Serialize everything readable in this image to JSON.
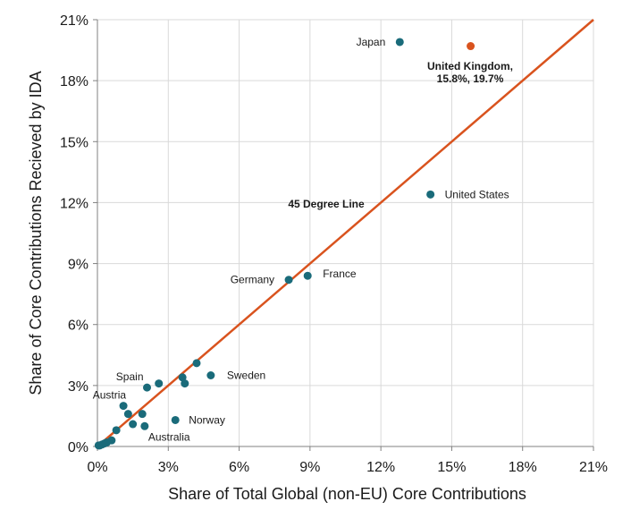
{
  "chart_data": {
    "type": "scatter",
    "title": "",
    "xlabel": "Share of Total Global (non-EU) Core Contributions",
    "ylabel": "Share of Core Contributions Recieved by IDA",
    "xlim": [
      0,
      21
    ],
    "ylim": [
      0,
      21
    ],
    "x_ticks": [
      "0%",
      "3%",
      "6%",
      "9%",
      "12%",
      "15%",
      "18%",
      "21%"
    ],
    "y_ticks": [
      "0%",
      "3%",
      "6%",
      "9%",
      "12%",
      "15%",
      "18%",
      "21%"
    ],
    "grid": true,
    "colors": {
      "points": "#1a6b7a",
      "highlight": "#d9531e",
      "line": "#d9531e",
      "grid": "#d9d9d9"
    },
    "reference_line": {
      "label": "45 Degree Line",
      "from": [
        0,
        0
      ],
      "to": [
        21,
        21
      ]
    },
    "highlight_label": [
      "United Kingdom,",
      "15.8%, 19.7%"
    ],
    "highlight": {
      "x": 15.8,
      "y": 19.7
    },
    "points": [
      {
        "x": 12.8,
        "y": 19.9,
        "label": "Japan"
      },
      {
        "x": 14.1,
        "y": 12.4,
        "label": "United States"
      },
      {
        "x": 8.1,
        "y": 8.2,
        "label": "Germany"
      },
      {
        "x": 8.9,
        "y": 8.4,
        "label": "France"
      },
      {
        "x": 4.8,
        "y": 3.5,
        "label": "Sweden"
      },
      {
        "x": 2.1,
        "y": 2.9,
        "label": "Spain"
      },
      {
        "x": 1.1,
        "y": 2.0,
        "label": "Austria"
      },
      {
        "x": 3.3,
        "y": 1.3,
        "label": "Norway"
      },
      {
        "x": 2.0,
        "y": 1.0,
        "label": "Australia"
      },
      {
        "x": 4.2,
        "y": 4.1,
        "label": ""
      },
      {
        "x": 3.6,
        "y": 3.4,
        "label": ""
      },
      {
        "x": 3.7,
        "y": 3.1,
        "label": ""
      },
      {
        "x": 2.6,
        "y": 3.1,
        "label": ""
      },
      {
        "x": 1.3,
        "y": 1.6,
        "label": ""
      },
      {
        "x": 1.9,
        "y": 1.6,
        "label": ""
      },
      {
        "x": 1.5,
        "y": 1.1,
        "label": ""
      },
      {
        "x": 0.8,
        "y": 0.8,
        "label": ""
      },
      {
        "x": 0.6,
        "y": 0.3,
        "label": ""
      },
      {
        "x": 0.4,
        "y": 0.2,
        "label": ""
      },
      {
        "x": 0.3,
        "y": 0.15,
        "label": ""
      },
      {
        "x": 0.2,
        "y": 0.1,
        "label": ""
      },
      {
        "x": 0.1,
        "y": 0.05,
        "label": ""
      },
      {
        "x": 0.05,
        "y": 0.05,
        "label": ""
      }
    ]
  }
}
